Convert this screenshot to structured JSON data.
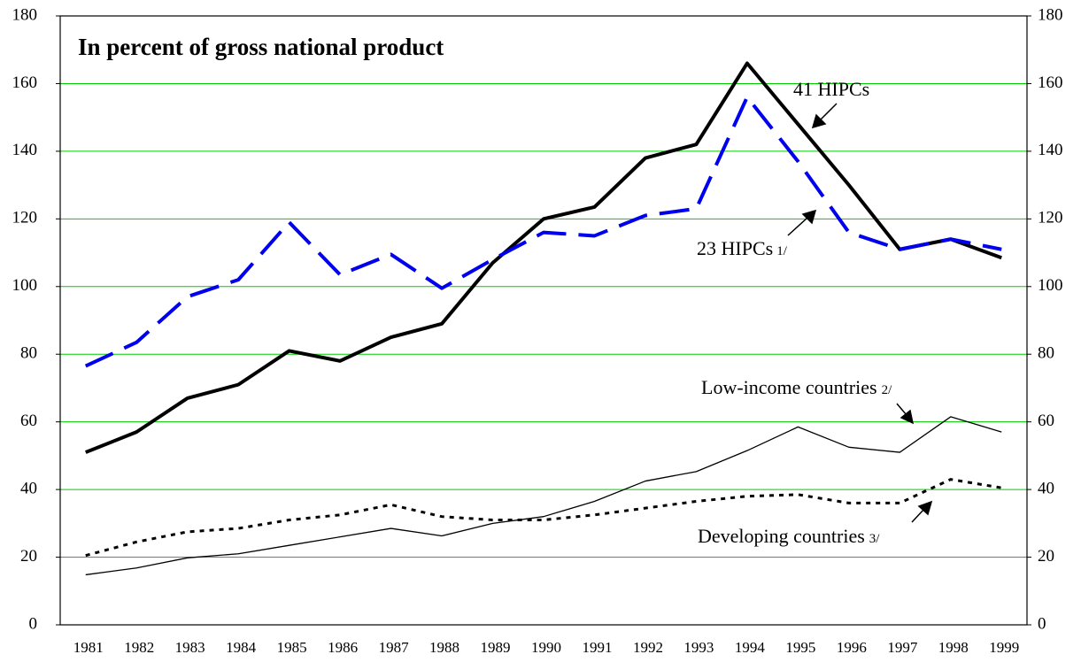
{
  "chart_data": {
    "type": "line",
    "title": "In percent of gross national product",
    "categories": [
      "1981",
      "1982",
      "1983",
      "1984",
      "1985",
      "1986",
      "1987",
      "1988",
      "1989",
      "1990",
      "1991",
      "1992",
      "1993",
      "1994",
      "1995",
      "1996",
      "1997",
      "1998",
      "1999"
    ],
    "series": [
      {
        "name": "41 HIPCs",
        "color": "#000000",
        "line_style": "solid",
        "linewidth": 4,
        "values": [
          51,
          57,
          67,
          71,
          81,
          78,
          85,
          89,
          107,
          120,
          123.5,
          138,
          142,
          166,
          148,
          130,
          111,
          114,
          108.5
        ]
      },
      {
        "name": "23 HIPCs",
        "color": "#0000ee",
        "line_style": "dashed",
        "linewidth": 4,
        "values": [
          76.5,
          83.5,
          97,
          102,
          119,
          103.5,
          109.5,
          99.5,
          108,
          116,
          115,
          121,
          123,
          156,
          137,
          116,
          111,
          114,
          111
        ]
      },
      {
        "name": "Low-income countries",
        "color": "#000000",
        "line_style": "solid",
        "linewidth": 1.3,
        "values": [
          14.8,
          16.8,
          19.8,
          21,
          23.5,
          26,
          28.5,
          26.3,
          30,
          32,
          36.5,
          42.5,
          45.3,
          51.5,
          58.5,
          52.5,
          51,
          61.5,
          57
        ]
      },
      {
        "name": "Developing countries",
        "color": "#000000",
        "line_style": "dotted",
        "linewidth": 3,
        "values": [
          20.5,
          24.5,
          27.5,
          28.5,
          31,
          32.5,
          35.5,
          32,
          31,
          31,
          32.5,
          34.5,
          36.5,
          38,
          38.5,
          36,
          36,
          43,
          40.5
        ]
      }
    ],
    "annotations": [
      {
        "text": "41 HIPCs"
      },
      {
        "text": "23 HIPCs",
        "note": "1/"
      },
      {
        "text": "Low-income countries",
        "note": "2/"
      },
      {
        "text": "Developing countries",
        "note": "3/"
      }
    ],
    "ylim": [
      0,
      180
    ],
    "yticks": [
      0,
      20,
      40,
      60,
      80,
      100,
      120,
      140,
      160,
      180
    ],
    "y2lim": [
      0,
      180
    ],
    "y2ticks": [
      0,
      20,
      40,
      60,
      80,
      100,
      120,
      140,
      160,
      180
    ],
    "grid": true,
    "grid_color": "#00cc00"
  }
}
